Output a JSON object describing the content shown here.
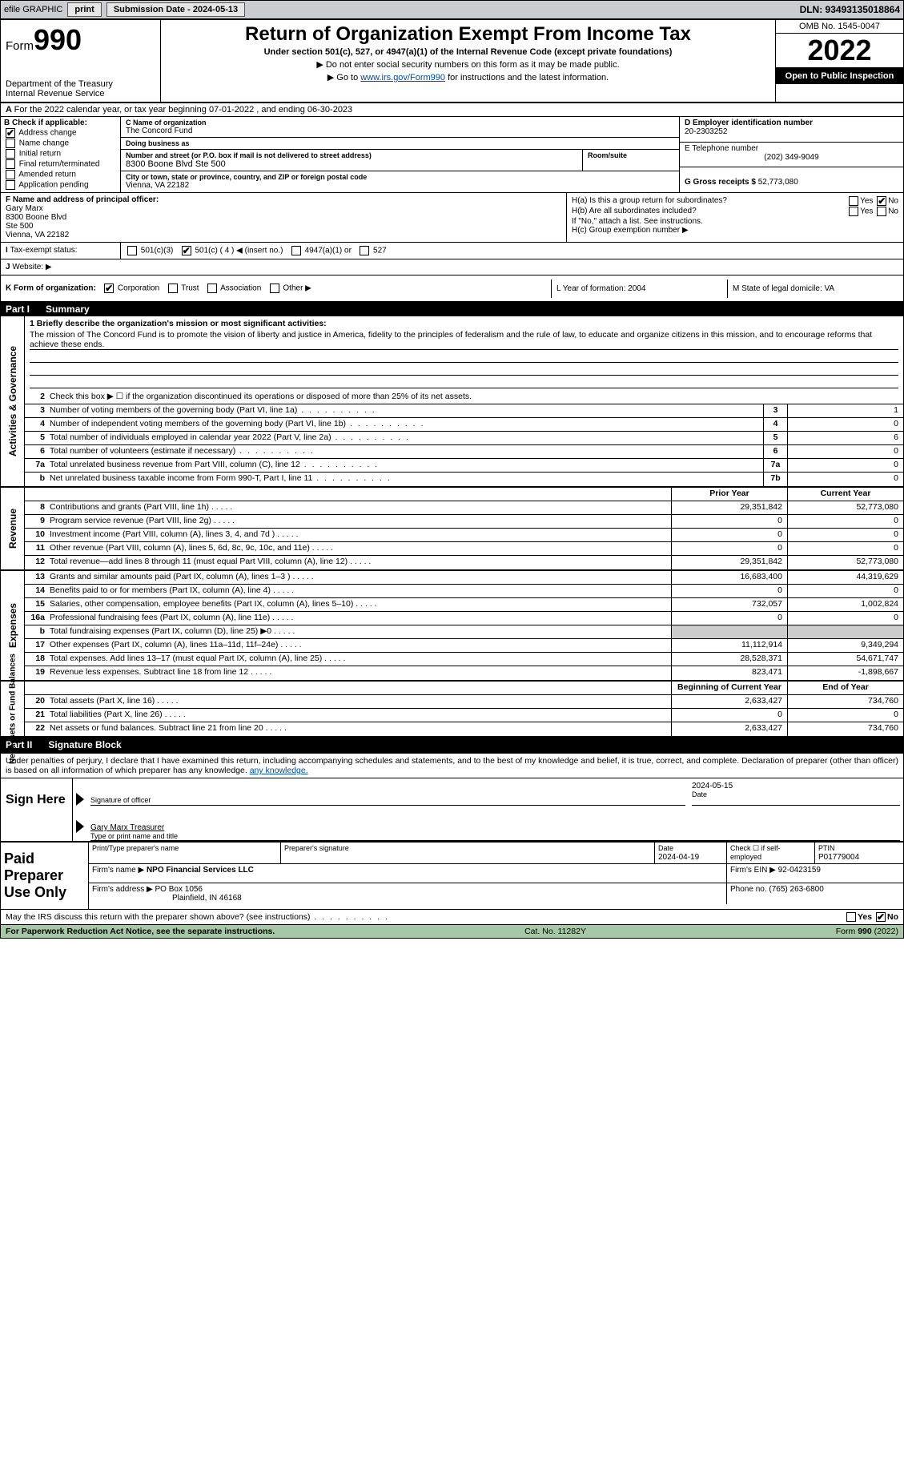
{
  "topbar": {
    "efile": "efile GRAPHIC",
    "print": "print",
    "submission_label": "Submission Date - 2024-05-13",
    "dln": "DLN: 93493135018864"
  },
  "header": {
    "form_prefix": "Form",
    "form_number": "990",
    "dept": "Department of the Treasury",
    "irs": "Internal Revenue Service",
    "title": "Return of Organization Exempt From Income Tax",
    "sub": "Under section 501(c), 527, or 4947(a)(1) of the Internal Revenue Code (except private foundations)",
    "note1": "▶ Do not enter social security numbers on this form as it may be made public.",
    "note2_pre": "▶ Go to ",
    "note2_link": "www.irs.gov/Form990",
    "note2_post": " for instructions and the latest information.",
    "omb": "OMB No. 1545-0047",
    "year": "2022",
    "open": "Open to Public Inspection"
  },
  "row_a": "For the 2022 calendar year, or tax year beginning 07-01-2022    , and ending 06-30-2023",
  "box_b": {
    "title": "B Check if applicable:",
    "items": [
      "Address change",
      "Name change",
      "Initial return",
      "Final return/terminated",
      "Amended return",
      "Application pending"
    ],
    "checked": [
      true,
      false,
      false,
      false,
      false,
      false
    ]
  },
  "box_c": {
    "name_label": "C Name of organization",
    "name": "The Concord Fund",
    "dba_label": "Doing business as",
    "dba": "",
    "addr_label": "Number and street (or P.O. box if mail is not delivered to street address)",
    "room_label": "Room/suite",
    "addr": "8300 Boone Blvd Ste 500",
    "city_label": "City or town, state or province, country, and ZIP or foreign postal code",
    "city": "Vienna, VA  22182"
  },
  "box_d": {
    "ein_label": "D Employer identification number",
    "ein": "20-2303252",
    "phone_label": "E Telephone number",
    "phone": "(202) 349-9049",
    "gross_label": "G Gross receipts $",
    "gross": "52,773,080"
  },
  "box_f": {
    "label": "F  Name and address of principal officer:",
    "name": "Gary Marx",
    "addr1": "8300 Boone Blvd",
    "addr2": "Ste 500",
    "addr3": "Vienna, VA  22182"
  },
  "box_h": {
    "a_label": "H(a)  Is this a group return for subordinates?",
    "a_yes": "Yes",
    "a_no": "No",
    "b_label": "H(b)  Are all subordinates included?",
    "b_note": "If \"No,\" attach a list. See instructions.",
    "c_label": "H(c)  Group exemption number ▶"
  },
  "status": {
    "i_label": "Tax-exempt status:",
    "opts": [
      "501(c)(3)",
      "501(c) ( 4 ) ◀ (insert no.)",
      "4947(a)(1) or",
      "527"
    ],
    "j_label": "Website: ▶"
  },
  "row_k": {
    "k": "K Form of organization:",
    "opts": [
      "Corporation",
      "Trust",
      "Association",
      "Other ▶"
    ],
    "l": "L Year of formation: 2004",
    "m": "M State of legal domicile: VA"
  },
  "part1": {
    "label": "Part I",
    "title": "Summary"
  },
  "mission": {
    "q": "1  Briefly describe the organization's mission or most significant activities:",
    "text": "The mission of The Concord Fund is to promote the vision of liberty and justice in America, fidelity to the principles of federalism and the rule of law, to educate and organize citizens in this mission, and to encourage reforms that achieve these ends."
  },
  "gov_lines": [
    {
      "n": "2",
      "d": "Check this box ▶ ☐  if the organization discontinued its operations or disposed of more than 25% of its net assets."
    },
    {
      "n": "3",
      "d": "Number of voting members of the governing body (Part VI, line 1a)",
      "b": "3",
      "v": "1"
    },
    {
      "n": "4",
      "d": "Number of independent voting members of the governing body (Part VI, line 1b)",
      "b": "4",
      "v": "0"
    },
    {
      "n": "5",
      "d": "Total number of individuals employed in calendar year 2022 (Part V, line 2a)",
      "b": "5",
      "v": "6"
    },
    {
      "n": "6",
      "d": "Total number of volunteers (estimate if necessary)",
      "b": "6",
      "v": "0"
    },
    {
      "n": "7a",
      "d": "Total unrelated business revenue from Part VIII, column (C), line 12",
      "b": "7a",
      "v": "0"
    },
    {
      "n": "b",
      "d": "Net unrelated business taxable income from Form 990-T, Part I, line 11",
      "b": "7b",
      "v": "0"
    }
  ],
  "col_hdr": {
    "prior": "Prior Year",
    "current": "Current Year"
  },
  "revenue": [
    {
      "n": "8",
      "d": "Contributions and grants (Part VIII, line 1h)",
      "p": "29,351,842",
      "c": "52,773,080"
    },
    {
      "n": "9",
      "d": "Program service revenue (Part VIII, line 2g)",
      "p": "0",
      "c": "0"
    },
    {
      "n": "10",
      "d": "Investment income (Part VIII, column (A), lines 3, 4, and 7d )",
      "p": "0",
      "c": "0"
    },
    {
      "n": "11",
      "d": "Other revenue (Part VIII, column (A), lines 5, 6d, 8c, 9c, 10c, and 11e)",
      "p": "0",
      "c": "0"
    },
    {
      "n": "12",
      "d": "Total revenue—add lines 8 through 11 (must equal Part VIII, column (A), line 12)",
      "p": "29,351,842",
      "c": "52,773,080"
    }
  ],
  "expenses": [
    {
      "n": "13",
      "d": "Grants and similar amounts paid (Part IX, column (A), lines 1–3 )",
      "p": "16,683,400",
      "c": "44,319,629"
    },
    {
      "n": "14",
      "d": "Benefits paid to or for members (Part IX, column (A), line 4)",
      "p": "0",
      "c": "0"
    },
    {
      "n": "15",
      "d": "Salaries, other compensation, employee benefits (Part IX, column (A), lines 5–10)",
      "p": "732,057",
      "c": "1,002,824"
    },
    {
      "n": "16a",
      "d": "Professional fundraising fees (Part IX, column (A), line 11e)",
      "p": "0",
      "c": "0"
    },
    {
      "n": "b",
      "d": "Total fundraising expenses (Part IX, column (D), line 25) ▶0",
      "p": "",
      "c": ""
    },
    {
      "n": "17",
      "d": "Other expenses (Part IX, column (A), lines 11a–11d, 11f–24e)",
      "p": "11,112,914",
      "c": "9,349,294"
    },
    {
      "n": "18",
      "d": "Total expenses. Add lines 13–17 (must equal Part IX, column (A), line 25)",
      "p": "28,528,371",
      "c": "54,671,747"
    },
    {
      "n": "19",
      "d": "Revenue less expenses. Subtract line 18 from line 12",
      "p": "823,471",
      "c": "-1,898,667"
    }
  ],
  "net_hdr": {
    "beg": "Beginning of Current Year",
    "end": "End of Year"
  },
  "net": [
    {
      "n": "20",
      "d": "Total assets (Part X, line 16)",
      "p": "2,633,427",
      "c": "734,760"
    },
    {
      "n": "21",
      "d": "Total liabilities (Part X, line 26)",
      "p": "0",
      "c": "0"
    },
    {
      "n": "22",
      "d": "Net assets or fund balances. Subtract line 21 from line 20",
      "p": "2,633,427",
      "c": "734,760"
    }
  ],
  "part2": {
    "label": "Part II",
    "title": "Signature Block"
  },
  "penalty": "Under penalties of perjury, I declare that I have examined this return, including accompanying schedules and statements, and to the best of my knowledge and belief, it is true, correct, and complete. Declaration of preparer (other than officer) is based on all information of which preparer has any knowledge.",
  "sign": {
    "label": "Sign Here",
    "sig_of_officer": "Signature of officer",
    "date_label": "Date",
    "date": "2024-05-15",
    "name": "Gary Marx  Treasurer",
    "name_label": "Type or print name and title"
  },
  "prep": {
    "label": "Paid Preparer Use Only",
    "h1": "Print/Type preparer's name",
    "h2": "Preparer's signature",
    "h3_label": "Date",
    "h3": "2024-04-19",
    "h4": "Check ☐ if self-employed",
    "h5_label": "PTIN",
    "h5": "P01779004",
    "firm_name_label": "Firm's name    ▶",
    "firm_name": "NPO Financial Services LLC",
    "firm_ein_label": "Firm's EIN ▶",
    "firm_ein": "92-0423159",
    "firm_addr_label": "Firm's address ▶",
    "firm_addr1": "PO Box 1056",
    "firm_addr2": "Plainfield, IN  46168",
    "phone_label": "Phone no.",
    "phone": "(765) 263-6800"
  },
  "discuss": "May the IRS discuss this return with the preparer shown above? (see instructions)",
  "footer": {
    "left": "For Paperwork Reduction Act Notice, see the separate instructions.",
    "mid": "Cat. No. 11282Y",
    "right": "Form 990 (2022)"
  },
  "vsides": {
    "gov": "Activities & Governance",
    "rev": "Revenue",
    "exp": "Expenses",
    "net": "Net Assets or Fund Balances"
  }
}
